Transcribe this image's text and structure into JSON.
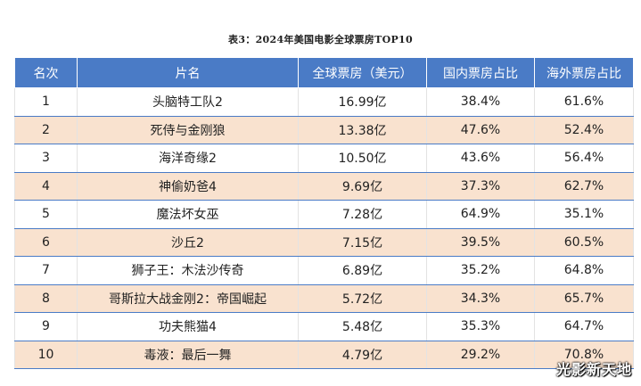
{
  "caption": "表3：2024年美国电影全球票房TOP10",
  "table": {
    "headers": [
      "名次",
      "片名",
      "全球票房（美元）",
      "国内票房占比",
      "海外票房占比"
    ],
    "rows": [
      [
        "1",
        "头脑特工队2",
        "16.99亿",
        "38.4%",
        "61.6%"
      ],
      [
        "2",
        "死侍与金刚狼",
        "13.38亿",
        "47.6%",
        "52.4%"
      ],
      [
        "3",
        "海洋奇缘2",
        "10.50亿",
        "43.6%",
        "56.4%"
      ],
      [
        "4",
        "神偷奶爸4",
        "9.69亿",
        "37.3%",
        "62.7%"
      ],
      [
        "5",
        "魔法坏女巫",
        "7.28亿",
        "64.9%",
        "35.1%"
      ],
      [
        "6",
        "沙丘2",
        "7.15亿",
        "39.5%",
        "60.5%"
      ],
      [
        "7",
        "狮子王：木法沙传奇",
        "6.89亿",
        "35.2%",
        "64.8%"
      ],
      [
        "8",
        "哥斯拉大战金刚2：帝国崛起",
        "5.72亿",
        "34.3%",
        "65.7%"
      ],
      [
        "9",
        "功夫熊猫4",
        "5.48亿",
        "35.3%",
        "64.7%"
      ],
      [
        "10",
        "毒液：最后一舞",
        "4.79亿",
        "29.2%",
        "70.8%"
      ]
    ]
  },
  "watermark": "光影新天地",
  "colors": {
    "header_bg": "#4a7bc6",
    "stripe_bg": "#f9e2cf"
  }
}
